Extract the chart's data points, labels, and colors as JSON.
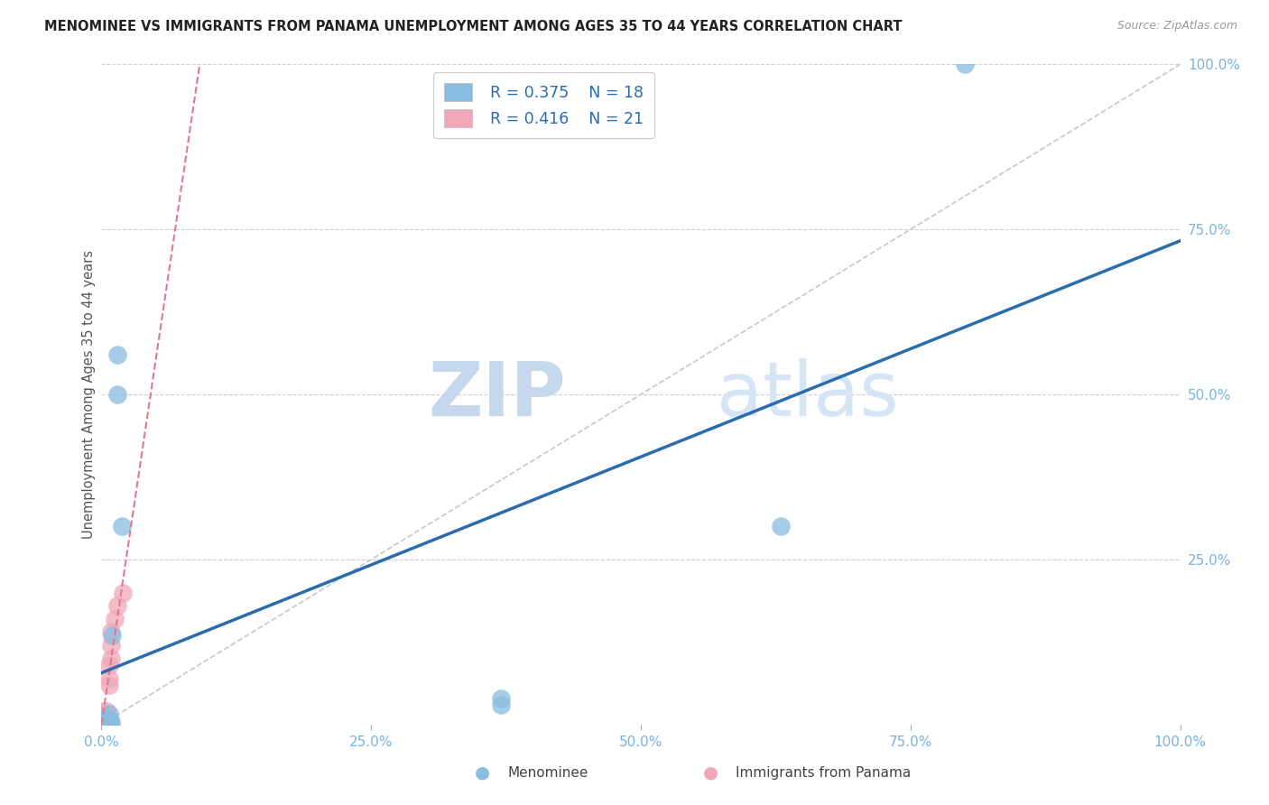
{
  "title": "MENOMINEE VS IMMIGRANTS FROM PANAMA UNEMPLOYMENT AMONG AGES 35 TO 44 YEARS CORRELATION CHART",
  "source_text": "Source: ZipAtlas.com",
  "ylabel": "Unemployment Among Ages 35 to 44 years",
  "xlabel_menominee": "Menominee",
  "xlabel_panama": "Immigrants from Panama",
  "legend_r_menominee": "R = 0.375",
  "legend_n_menominee": "N = 18",
  "legend_r_panama": "R = 0.416",
  "legend_n_panama": "N = 21",
  "watermark_zip": "ZIP",
  "watermark_atlas": "atlas",
  "blue_color": "#7ab3e0",
  "pink_color": "#f4a0b5",
  "blue_line_color": "#2b6cb0",
  "pink_line_color": "#e07a8a",
  "blue_scatter_color": "#89bde0",
  "pink_scatter_color": "#f0a8b8",
  "menominee_x": [
    0.005,
    0.005,
    0.005,
    0.005,
    0.005,
    0.007,
    0.007,
    0.007,
    0.009,
    0.009,
    0.01,
    0.015,
    0.015,
    0.019,
    0.37,
    0.37,
    0.63,
    0.8
  ],
  "menominee_y": [
    0.0,
    0.0,
    0.005,
    0.005,
    0.008,
    0.0,
    0.005,
    0.016,
    0.0,
    0.005,
    0.135,
    0.5,
    0.56,
    0.3,
    0.03,
    0.04,
    0.3,
    1.0
  ],
  "panama_x": [
    0.0,
    0.0,
    0.0,
    0.0,
    0.0,
    0.0,
    0.0,
    0.0,
    0.0,
    0.005,
    0.005,
    0.005,
    0.007,
    0.007,
    0.007,
    0.009,
    0.009,
    0.009,
    0.012,
    0.015,
    0.02
  ],
  "panama_y": [
    0.0,
    0.0,
    0.0,
    0.0,
    0.005,
    0.007,
    0.01,
    0.015,
    0.02,
    0.005,
    0.01,
    0.02,
    0.06,
    0.07,
    0.09,
    0.1,
    0.12,
    0.14,
    0.16,
    0.18,
    0.2
  ],
  "xlim": [
    0.0,
    1.0
  ],
  "ylim": [
    0.0,
    1.0
  ],
  "xticks": [
    0.0,
    0.25,
    0.5,
    0.75,
    1.0
  ],
  "yticks_right": [
    0.25,
    0.5,
    0.75,
    1.0
  ],
  "background_color": "#ffffff",
  "grid_color": "#d0d0d0",
  "tick_color": "#7ab3e0"
}
